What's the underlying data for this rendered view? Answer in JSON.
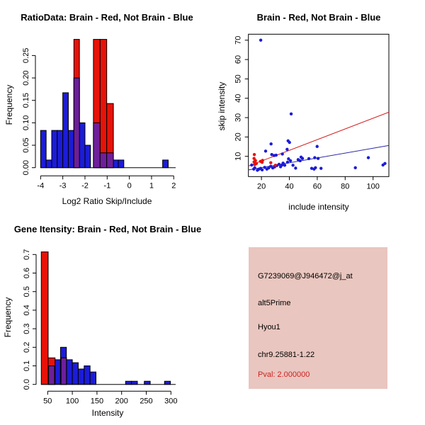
{
  "colors": {
    "hist_blue": "#1c1cd8",
    "hist_red": "#e81208",
    "overlap_purple": "#6e1f9b",
    "scatter_blue": "#1c1cd8",
    "scatter_red": "#e81208",
    "fit_line_red": "#d42020",
    "fit_line_blue": "#2828a8",
    "info_bg": "#e9c6bf",
    "pval_red": "#cc2222",
    "axis": "#000000"
  },
  "info_panel": {
    "probeset_id": "G7239069@J946472@j_at",
    "splice_event_type": "alt5Prime",
    "gene_symbol": "Hyou1",
    "genomic_location": "chr9.25881-1.22",
    "pval_text": "Pval: 2.000000"
  },
  "chart_data": [
    {
      "type": "bar",
      "variant": "overlaid-histogram",
      "title": "RatioData: Brain - Red, Not Brain - Blue",
      "xlabel": "Log2 Ratio Skip/Include",
      "ylabel": "Frequency",
      "xticks": [
        -4,
        -3,
        -2,
        -1,
        0,
        1,
        2
      ],
      "yticks": [
        "0.00",
        "0.05",
        "0.10",
        "0.15",
        "0.20",
        "0.25"
      ],
      "xlim": [
        -4.45,
        2.3
      ],
      "ylim": [
        0,
        0.29
      ],
      "grid": false,
      "series": [
        {
          "name": "not-brain",
          "color": "hist_blue",
          "bars": [
            [
              -4.0,
              -3.75,
              0.083
            ],
            [
              -3.75,
              -3.5,
              0.017
            ],
            [
              -3.5,
              -3.25,
              0.083
            ],
            [
              -3.25,
              -3.0,
              0.083
            ],
            [
              -3.0,
              -2.75,
              0.167
            ],
            [
              -2.75,
              -2.5,
              0.083
            ],
            [
              -2.5,
              -2.25,
              0.2
            ],
            [
              -2.25,
              -2.0,
              0.1
            ],
            [
              -2.0,
              -1.75,
              0.05
            ],
            [
              -1.5,
              -1.25,
              0.1
            ],
            [
              -1.25,
              -1.0,
              0.033
            ],
            [
              -1.0,
              -0.75,
              0.033
            ],
            [
              -0.75,
              -0.5,
              0.017
            ],
            [
              -0.5,
              -0.25,
              0.017
            ],
            [
              1.5,
              1.75,
              0.017
            ]
          ]
        },
        {
          "name": "brain",
          "color": "hist_red",
          "bars": [
            [
              -2.5,
              -2.25,
              0.286
            ],
            [
              -1.62,
              -1.32,
              0.286
            ],
            [
              -1.32,
              -1.02,
              0.286
            ],
            [
              -1.02,
              -0.72,
              0.143
            ]
          ]
        },
        {
          "name": "overlap",
          "color": "overlap_purple",
          "bars": [
            [
              -2.5,
              -2.25,
              0.2
            ],
            [
              -1.62,
              -1.32,
              0.1
            ],
            [
              -1.32,
              -1.02,
              0.033
            ],
            [
              -1.02,
              -0.72,
              0.033
            ]
          ]
        }
      ]
    },
    {
      "type": "scatter",
      "title": "Brain - Red, Not Brain - Blue",
      "xlabel": "include intensity",
      "ylabel": "skip intensity",
      "xticks": [
        20,
        40,
        60,
        80,
        100
      ],
      "yticks": [
        10,
        20,
        30,
        40,
        50,
        60,
        70
      ],
      "xlim": [
        10.7,
        111.3
      ],
      "ylim": [
        -0.5,
        73.1
      ],
      "grid": false,
      "series": [
        {
          "name": "not-brain",
          "color": "scatter_blue",
          "points": [
            [
              19.5,
              70
            ],
            [
              41.3,
              31.9
            ],
            [
              26.9,
              16.4
            ],
            [
              39.1,
              18.0
            ],
            [
              40.1,
              17.2
            ],
            [
              23.0,
              12.7
            ],
            [
              38.4,
              13.6
            ],
            [
              27.4,
              10.9
            ],
            [
              29.1,
              10.4
            ],
            [
              30.5,
              10.6
            ],
            [
              35.0,
              11.2
            ],
            [
              59.9,
              15.1
            ],
            [
              58.2,
              9.3
            ],
            [
              60.6,
              8.9
            ],
            [
              54.0,
              8.8
            ],
            [
              48.4,
              9.6
            ],
            [
              49.4,
              8.9
            ],
            [
              46.3,
              8.3
            ],
            [
              47.7,
              7.7
            ],
            [
              39.4,
              8.7
            ],
            [
              40.8,
              7.7
            ],
            [
              38.7,
              7.0
            ],
            [
              42.6,
              5.4
            ],
            [
              44.5,
              3.9
            ],
            [
              35.5,
              6.5
            ],
            [
              36.7,
              5.4
            ],
            [
              34.7,
              5.5
            ],
            [
              33.7,
              4.6
            ],
            [
              32.6,
              5.9
            ],
            [
              31.0,
              5.2
            ],
            [
              29.4,
              4.5
            ],
            [
              28.1,
              4.0
            ],
            [
              26.7,
              4.9
            ],
            [
              25.2,
              4.0
            ],
            [
              23.9,
              3.4
            ],
            [
              22.3,
              4.3
            ],
            [
              20.5,
              3.0
            ],
            [
              19.4,
              3.8
            ],
            [
              18.3,
              3.4
            ],
            [
              17.1,
              2.8
            ],
            [
              15.2,
              4.0
            ],
            [
              14.5,
              3.4
            ],
            [
              13.0,
              5.5
            ],
            [
              56.0,
              3.8
            ],
            [
              57.7,
              3.4
            ],
            [
              58.7,
              4.1
            ],
            [
              62.7,
              3.8
            ],
            [
              87.3,
              4.1
            ],
            [
              96.6,
              9.3
            ],
            [
              107.1,
              5.5
            ],
            [
              108.5,
              6.3
            ]
          ]
        },
        {
          "name": "brain",
          "color": "scatter_red",
          "points": [
            [
              14.7,
              8.9
            ],
            [
              14.7,
              7.1
            ],
            [
              15.2,
              5.7
            ],
            [
              15.7,
              7.8
            ],
            [
              16.4,
              6.3
            ],
            [
              19.3,
              7.4
            ],
            [
              20.5,
              6.9
            ],
            [
              20.8,
              7.9
            ],
            [
              26.7,
              6.7
            ],
            [
              30.0,
              5.4
            ],
            [
              14.9,
              10.9
            ]
          ]
        }
      ],
      "lines": [
        {
          "name": "brain-fit-line",
          "color": "fit_line_red",
          "from": [
            10.7,
            5.0
          ],
          "to": [
            111.3,
            32.8
          ]
        },
        {
          "name": "not-brain-fit-line",
          "color": "fit_line_blue",
          "from": [
            10.7,
            3.0
          ],
          "to": [
            111.3,
            15.6
          ]
        }
      ]
    },
    {
      "type": "bar",
      "variant": "overlaid-histogram",
      "title": "Gene Itensity: Brain - Red, Not Brain - Blue",
      "xlabel": "Intensity",
      "ylabel": "Frequency",
      "xticks": [
        50,
        100,
        150,
        200,
        250,
        300
      ],
      "yticks": [
        "0.0",
        "0.1",
        "0.2",
        "0.3",
        "0.4",
        "0.5",
        "0.6",
        "0.7"
      ],
      "xlim": [
        30,
        310
      ],
      "ylim": [
        0,
        0.73
      ],
      "grid": false,
      "series": [
        {
          "name": "not-brain",
          "color": "hist_blue",
          "bars": [
            [
              52,
              64,
              0.1
            ],
            [
              64,
              76,
              0.133
            ],
            [
              76,
              88,
              0.2
            ],
            [
              88,
              100,
              0.133
            ],
            [
              100,
              112,
              0.117
            ],
            [
              112,
              124,
              0.083
            ],
            [
              124,
              136,
              0.1
            ],
            [
              136,
              148,
              0.067
            ],
            [
              208,
              220,
              0.017
            ],
            [
              220,
              232,
              0.017
            ],
            [
              246,
              258,
              0.017
            ],
            [
              287,
              299,
              0.017
            ]
          ]
        },
        {
          "name": "brain",
          "color": "hist_red",
          "bars": [
            [
              37,
              51,
              0.714
            ],
            [
              51,
              65,
              0.143
            ],
            [
              77,
              88,
              0.143
            ]
          ]
        },
        {
          "name": "overlap",
          "color": "overlap_purple",
          "bars": [
            [
              52,
              64,
              0.1
            ],
            [
              77,
              88,
              0.143
            ]
          ]
        }
      ]
    }
  ]
}
